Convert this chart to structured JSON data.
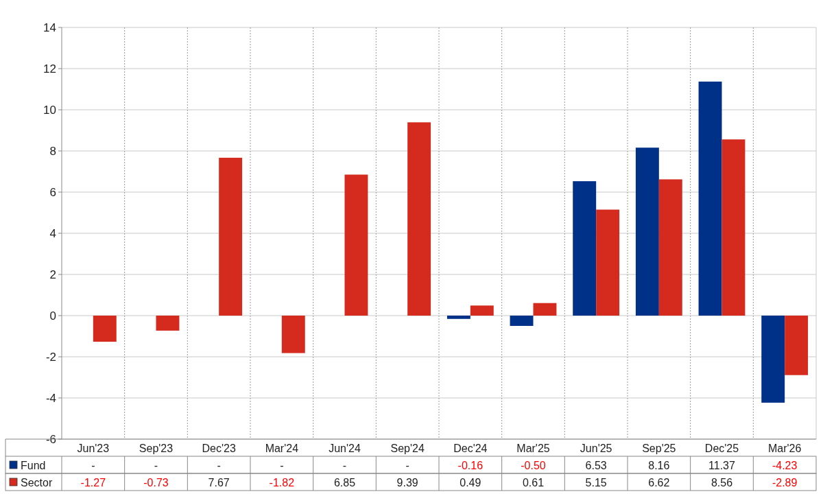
{
  "chart_data": {
    "type": "bar",
    "categories": [
      "Jun'23",
      "Sep'23",
      "Dec'23",
      "Mar'24",
      "Jun'24",
      "Sep'24",
      "Dec'24",
      "Mar'25",
      "Jun'25",
      "Sep'25",
      "Dec'25",
      "Mar'26"
    ],
    "series": [
      {
        "name": "Fund",
        "color": "#003189",
        "values": [
          null,
          null,
          null,
          null,
          null,
          null,
          -0.16,
          -0.5,
          6.53,
          8.16,
          11.37,
          -4.23
        ],
        "value_labels": [
          "-",
          "-",
          "-",
          "-",
          "-",
          "-",
          "-0.16",
          "-0.50",
          "6.53",
          "8.16",
          "11.37",
          "-4.23"
        ]
      },
      {
        "name": "Sector",
        "color": "#d52b1e",
        "values": [
          -1.27,
          -0.73,
          7.67,
          -1.82,
          6.85,
          9.39,
          0.49,
          0.61,
          5.15,
          6.62,
          8.56,
          -2.89
        ],
        "value_labels": [
          "-1.27",
          "-0.73",
          "7.67",
          "-1.82",
          "6.85",
          "9.39",
          "0.49",
          "0.61",
          "5.15",
          "6.62",
          "8.56",
          "-2.89"
        ]
      }
    ],
    "ylim": [
      -6,
      14
    ],
    "yticks": [
      -6,
      -4,
      -2,
      0,
      2,
      4,
      6,
      8,
      10,
      12,
      14
    ],
    "grid": true,
    "legend": "bottom"
  }
}
